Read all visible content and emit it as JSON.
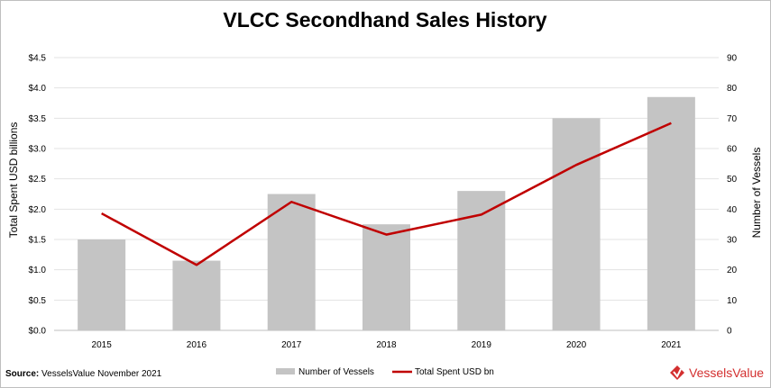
{
  "chart_data": {
    "type": "bar+line",
    "title": "VLCC Secondhand Sales History",
    "categories": [
      "2015",
      "2016",
      "2017",
      "2018",
      "2019",
      "2020",
      "2021"
    ],
    "series": [
      {
        "name": "Number of Vessels",
        "type": "bar",
        "axis": "right",
        "values": [
          30,
          23,
          45,
          35,
          46,
          70,
          77
        ],
        "color": "#c4c4c4"
      },
      {
        "name": "Total Spent USD bn",
        "type": "line",
        "axis": "left",
        "values": [
          1.93,
          1.08,
          2.12,
          1.58,
          1.91,
          2.73,
          3.42
        ],
        "color": "#c00000"
      }
    ],
    "ylabel_left": "Total Spent USD billions",
    "ylabel_right": "Number of Vessels",
    "ylim_left": [
      0,
      4.5
    ],
    "ylim_right": [
      0,
      90
    ],
    "yticks_left": [
      "$0.0",
      "$0.5",
      "$1.0",
      "$1.5",
      "$2.0",
      "$2.5",
      "$3.0",
      "$3.5",
      "$4.0",
      "$4.5"
    ],
    "yticks_right": [
      "0",
      "10",
      "20",
      "30",
      "40",
      "50",
      "60",
      "70",
      "80",
      "90"
    ],
    "grid": true,
    "legend": "bottom"
  },
  "footer": {
    "source_label": "Source:",
    "source_text": "VesselsValue November 2021",
    "logo_text": "VesselsValue",
    "logo_color": "#d32f2f"
  }
}
